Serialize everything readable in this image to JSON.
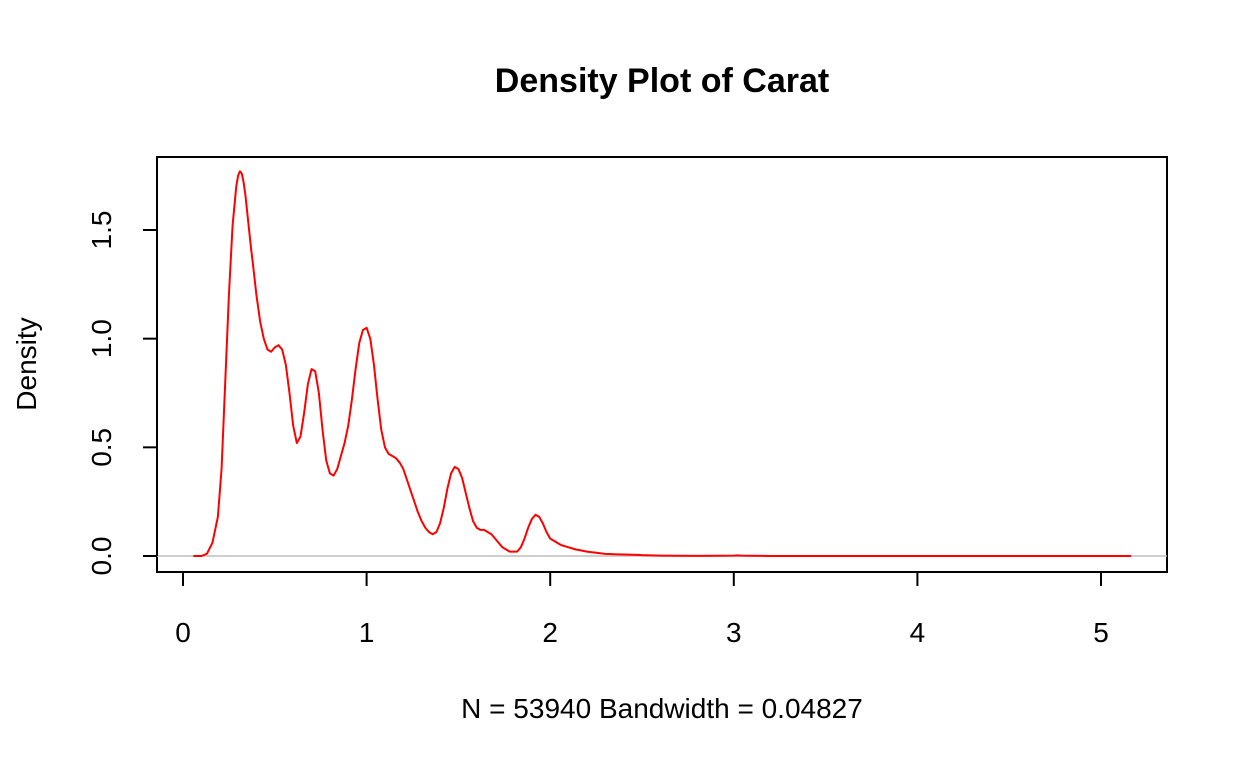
{
  "chart_data": {
    "type": "line",
    "title": "Density Plot of Carat",
    "xlabel": "N = 53940   Bandwidth = 0.04827",
    "ylabel": "Density",
    "xlim": [
      0,
      5.2
    ],
    "ylim": [
      0,
      1.8
    ],
    "x_ticks": [
      "0",
      "1",
      "2",
      "3",
      "4",
      "5"
    ],
    "y_ticks": [
      "0.0",
      "0.5",
      "1.0",
      "1.5"
    ],
    "grid": false,
    "legend": "none",
    "line_color": "#ff0000",
    "baseline_color": "#bebebe",
    "series": [
      {
        "x": [
          0.06,
          0.1,
          0.13,
          0.16,
          0.19,
          0.21,
          0.23,
          0.25,
          0.27,
          0.29,
          0.3,
          0.31,
          0.32,
          0.33,
          0.34,
          0.35,
          0.36,
          0.37,
          0.38,
          0.4,
          0.42,
          0.44,
          0.46,
          0.48,
          0.5,
          0.52,
          0.54,
          0.56,
          0.58,
          0.6,
          0.62,
          0.64,
          0.66,
          0.68,
          0.7,
          0.72,
          0.74,
          0.76,
          0.78,
          0.8,
          0.82,
          0.84,
          0.86,
          0.88,
          0.9,
          0.92,
          0.94,
          0.96,
          0.98,
          1.0,
          1.02,
          1.04,
          1.06,
          1.08,
          1.1,
          1.12,
          1.14,
          1.16,
          1.18,
          1.2,
          1.22,
          1.24,
          1.26,
          1.28,
          1.3,
          1.32,
          1.34,
          1.36,
          1.38,
          1.4,
          1.42,
          1.44,
          1.46,
          1.48,
          1.5,
          1.52,
          1.54,
          1.56,
          1.58,
          1.6,
          1.62,
          1.64,
          1.66,
          1.68,
          1.7,
          1.72,
          1.74,
          1.76,
          1.78,
          1.8,
          1.82,
          1.84,
          1.86,
          1.88,
          1.9,
          1.92,
          1.94,
          1.96,
          1.98,
          2.0,
          2.02,
          2.04,
          2.06,
          2.08,
          2.1,
          2.12,
          2.14,
          2.16,
          2.2,
          2.25,
          2.3,
          2.35,
          2.4,
          2.45,
          2.5,
          2.55,
          2.6,
          2.7,
          2.8,
          3.0,
          3.02,
          3.04,
          3.2,
          3.5,
          4.0,
          4.5,
          5.01,
          5.16
        ],
        "y": [
          0.0,
          0.0,
          0.01,
          0.06,
          0.18,
          0.4,
          0.8,
          1.2,
          1.52,
          1.7,
          1.75,
          1.77,
          1.76,
          1.72,
          1.66,
          1.58,
          1.5,
          1.42,
          1.35,
          1.2,
          1.08,
          1.0,
          0.95,
          0.94,
          0.96,
          0.97,
          0.95,
          0.88,
          0.75,
          0.6,
          0.52,
          0.55,
          0.66,
          0.79,
          0.86,
          0.85,
          0.75,
          0.58,
          0.44,
          0.38,
          0.37,
          0.4,
          0.46,
          0.52,
          0.6,
          0.72,
          0.86,
          0.98,
          1.04,
          1.05,
          1.0,
          0.88,
          0.72,
          0.58,
          0.5,
          0.47,
          0.46,
          0.45,
          0.43,
          0.4,
          0.35,
          0.3,
          0.25,
          0.2,
          0.16,
          0.13,
          0.11,
          0.1,
          0.11,
          0.15,
          0.22,
          0.31,
          0.38,
          0.41,
          0.4,
          0.36,
          0.29,
          0.22,
          0.16,
          0.13,
          0.12,
          0.12,
          0.11,
          0.1,
          0.08,
          0.06,
          0.04,
          0.03,
          0.02,
          0.02,
          0.02,
          0.04,
          0.08,
          0.13,
          0.17,
          0.19,
          0.18,
          0.15,
          0.11,
          0.08,
          0.07,
          0.06,
          0.05,
          0.045,
          0.04,
          0.035,
          0.03,
          0.027,
          0.02,
          0.015,
          0.01,
          0.008,
          0.007,
          0.006,
          0.004,
          0.003,
          0.002,
          0.001,
          0.0005,
          0.002,
          0.003,
          0.002,
          0.0,
          0.0,
          0.0,
          0.0,
          0.0,
          0.0
        ]
      }
    ]
  }
}
